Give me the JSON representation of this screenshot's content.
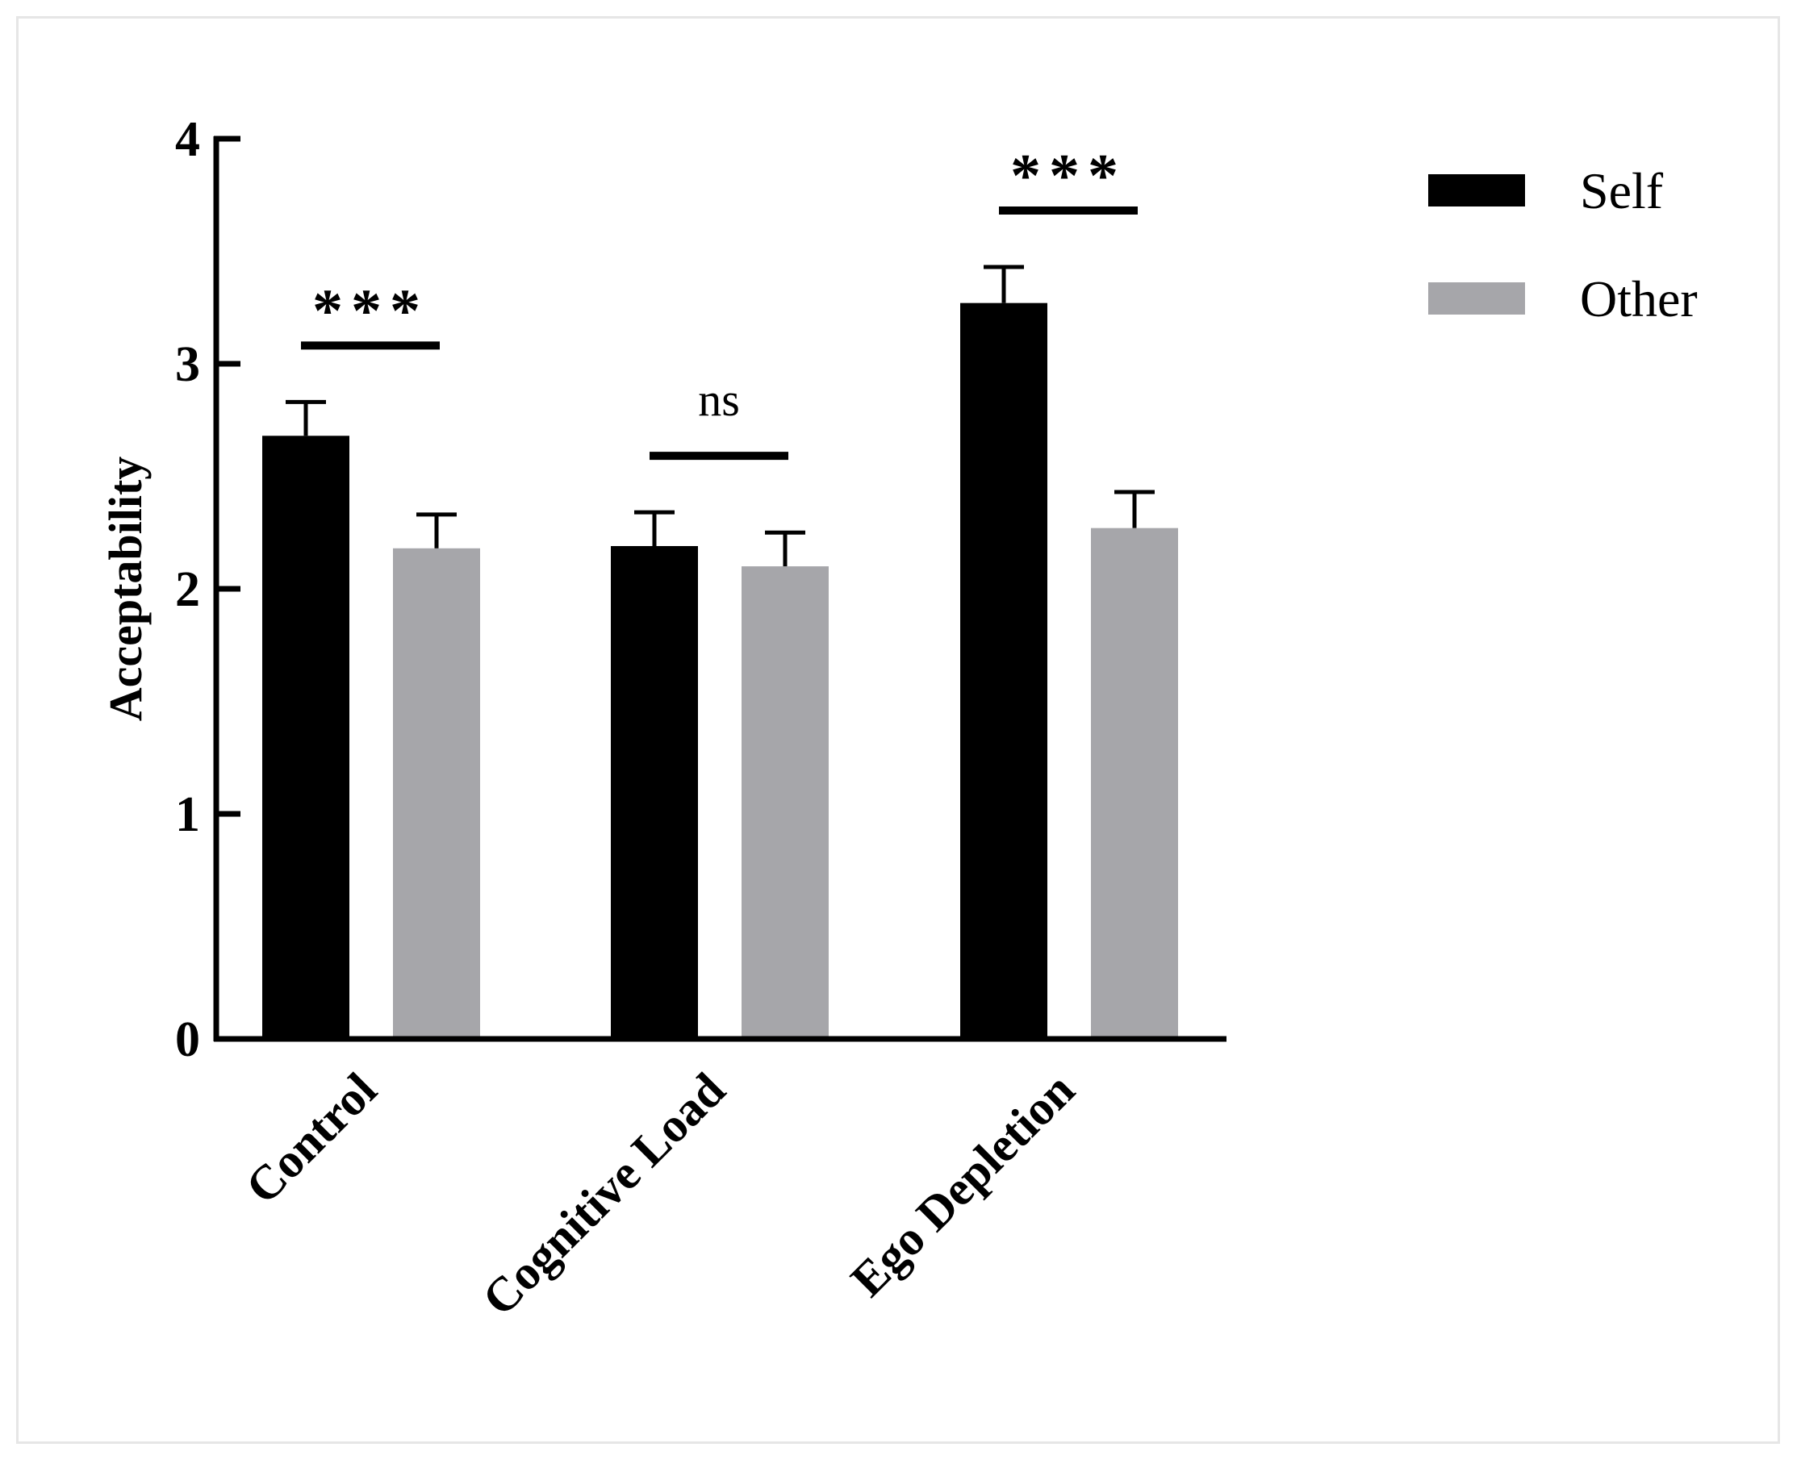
{
  "chart_data": {
    "type": "bar",
    "title": "",
    "xlabel": "",
    "ylabel": "Acceptability",
    "ylim": [
      0,
      4
    ],
    "yticks": [
      "0",
      "1",
      "2",
      "3",
      "4"
    ],
    "grid": false,
    "legend_position": "top-right",
    "categories": [
      "Control",
      "Cognitive Load",
      "Ego Depletion"
    ],
    "series": [
      {
        "name": "Self",
        "color": "#000000",
        "values": [
          2.68,
          2.19,
          3.27
        ],
        "errors": [
          0.15,
          0.15,
          0.16
        ]
      },
      {
        "name": "Other",
        "color": "#a6a6aa",
        "values": [
          2.18,
          2.1,
          2.27
        ],
        "errors": [
          0.15,
          0.15,
          0.16
        ]
      }
    ],
    "significance": [
      "***",
      "ns",
      "***"
    ]
  }
}
